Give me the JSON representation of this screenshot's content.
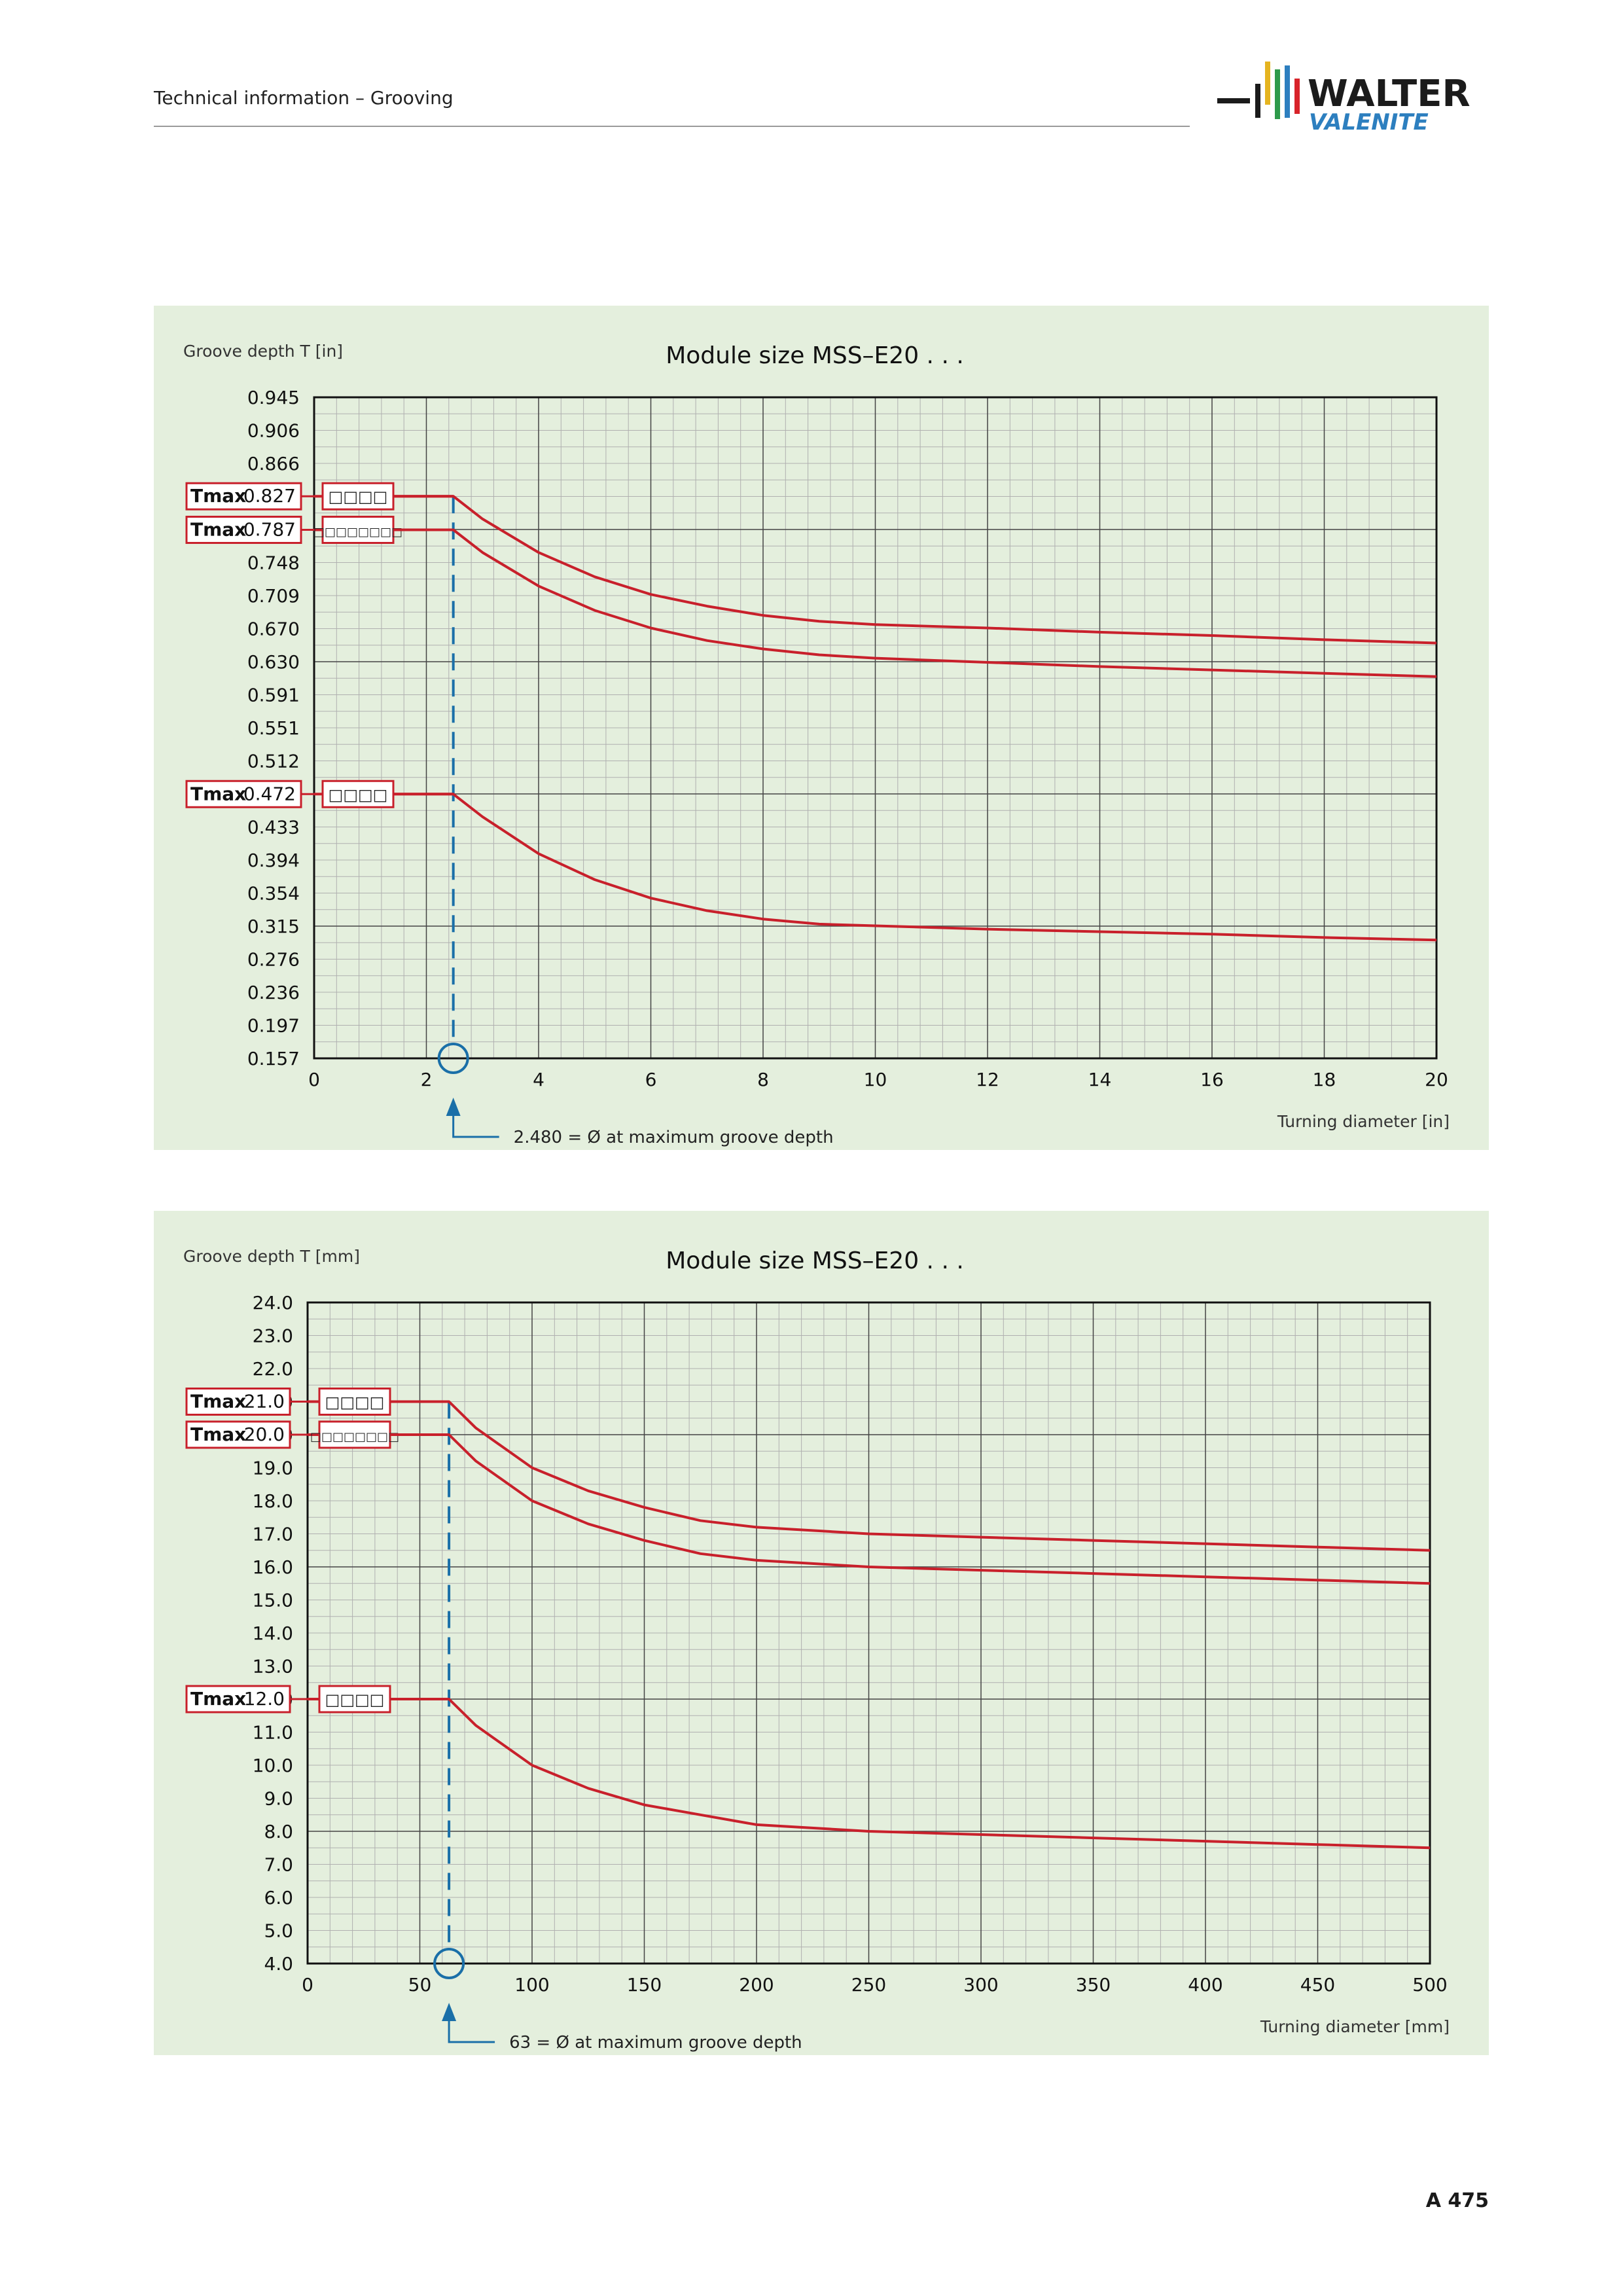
{
  "header": {
    "title": "Technical information – Grooving",
    "logo_top": "WALTER",
    "logo_bottom": "VALENITE",
    "logo_colors": [
      "#1b1b1b",
      "#e5b420",
      "#2e9a4a",
      "#2d7fbf",
      "#d8232a"
    ]
  },
  "page_number": "A 475",
  "colors": {
    "panel_bg": "#e4efdd",
    "curve": "#c8202b",
    "marker": "#1a6fa8",
    "grid_major": "#444444",
    "grid_minor": "#b0b0b0"
  },
  "chart_data": [
    {
      "type": "line",
      "title": "Module size MSS–E20 . . .",
      "ylabel": "Groove depth T [in]",
      "xlabel": "Turning diameter [in]",
      "xlim": [
        0,
        20
      ],
      "ylim": [
        0.157,
        0.945
      ],
      "x_ticks": [
        "0",
        "2",
        "4",
        "6",
        "8",
        "10",
        "12",
        "14",
        "16",
        "18",
        "20"
      ],
      "y_ticks": [
        "0.157",
        "0.197",
        "0.236",
        "0.276",
        "0.315",
        "0.354",
        "0.394",
        "0.433",
        "0.472",
        "0.512",
        "0.551",
        "0.591",
        "0.630",
        "0.670",
        "0.709",
        "0.748",
        "0.787",
        "0.827",
        "0.866",
        "0.906",
        "0.945"
      ],
      "grid": true,
      "marker": {
        "x": 2.48,
        "label": "2.480 = Ø at maximum groove depth"
      },
      "tmax_label": "Tmax",
      "series": [
        {
          "tmax": "0.827",
          "code": "□□□□",
          "x": [
            0,
            2.48,
            3,
            4,
            5,
            6,
            7,
            8,
            9,
            10,
            12,
            14,
            16,
            18,
            20
          ],
          "y": [
            0.827,
            0.827,
            0.8,
            0.76,
            0.731,
            0.71,
            0.696,
            0.685,
            0.678,
            0.674,
            0.67,
            0.665,
            0.661,
            0.656,
            0.652
          ]
        },
        {
          "tmax": "0.787",
          "code": "□□□□□□□□",
          "x": [
            0,
            2.48,
            3,
            4,
            5,
            6,
            7,
            8,
            9,
            10,
            12,
            14,
            16,
            18,
            20
          ],
          "y": [
            0.787,
            0.787,
            0.76,
            0.72,
            0.691,
            0.67,
            0.655,
            0.645,
            0.638,
            0.634,
            0.629,
            0.624,
            0.62,
            0.616,
            0.612
          ]
        },
        {
          "tmax": "0.472",
          "code": "□□□□",
          "x": [
            0,
            2.48,
            3,
            4,
            5,
            6,
            7,
            8,
            9,
            10,
            12,
            14,
            16,
            18,
            20
          ],
          "y": [
            0.472,
            0.472,
            0.445,
            0.401,
            0.37,
            0.348,
            0.333,
            0.323,
            0.317,
            0.315,
            0.311,
            0.308,
            0.305,
            0.301,
            0.298
          ]
        }
      ]
    },
    {
      "type": "line",
      "title": "Module size MSS–E20 . . .",
      "ylabel": "Groove depth T [mm]",
      "xlabel": "Turning diameter [mm]",
      "xlim": [
        0,
        500
      ],
      "ylim": [
        4.0,
        24.0
      ],
      "x_ticks": [
        "0",
        "50",
        "100",
        "150",
        "200",
        "250",
        "300",
        "350",
        "400",
        "450",
        "500"
      ],
      "y_ticks": [
        "4.0",
        "5.0",
        "6.0",
        "7.0",
        "8.0",
        "9.0",
        "10.0",
        "11.0",
        "12.0",
        "13.0",
        "14.0",
        "15.0",
        "16.0",
        "17.0",
        "18.0",
        "19.0",
        "20.0",
        "21.0",
        "22.0",
        "23.0",
        "24.0"
      ],
      "grid": true,
      "marker": {
        "x": 63,
        "label": "63 = Ø at maximum groove depth"
      },
      "tmax_label": "Tmax",
      "series": [
        {
          "tmax": "21.0",
          "code": "□□□□",
          "x": [
            0,
            63,
            75,
            100,
            125,
            150,
            175,
            200,
            250,
            300,
            350,
            400,
            450,
            500
          ],
          "y": [
            21.0,
            21.0,
            20.2,
            19.0,
            18.3,
            17.8,
            17.4,
            17.2,
            17.0,
            16.9,
            16.8,
            16.7,
            16.6,
            16.5
          ]
        },
        {
          "tmax": "20.0",
          "code": "□□□□□□□□",
          "x": [
            0,
            63,
            75,
            100,
            125,
            150,
            175,
            200,
            250,
            300,
            350,
            400,
            450,
            500
          ],
          "y": [
            20.0,
            20.0,
            19.2,
            18.0,
            17.3,
            16.8,
            16.4,
            16.2,
            16.0,
            15.9,
            15.8,
            15.7,
            15.6,
            15.5
          ]
        },
        {
          "tmax": "12.0",
          "code": "□□□□",
          "x": [
            0,
            63,
            75,
            100,
            125,
            150,
            175,
            200,
            250,
            300,
            350,
            400,
            450,
            500
          ],
          "y": [
            12.0,
            12.0,
            11.2,
            10.0,
            9.3,
            8.8,
            8.5,
            8.2,
            8.0,
            7.9,
            7.8,
            7.7,
            7.6,
            7.5
          ]
        }
      ]
    }
  ]
}
